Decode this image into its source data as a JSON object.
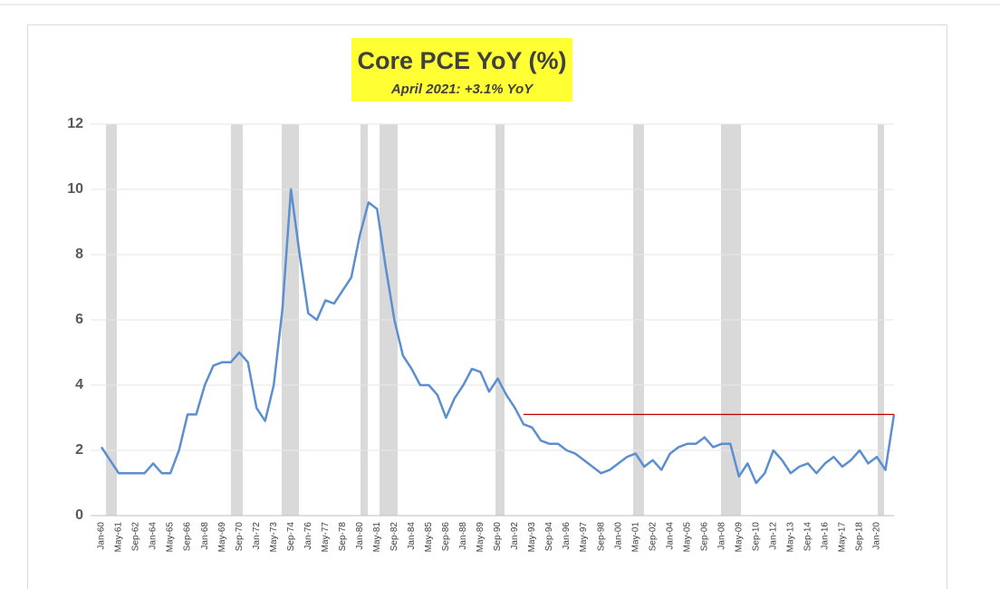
{
  "chart_data": {
    "type": "line",
    "title": "Core PCE YoY (%)",
    "subtitle": "April 2021: +3.1% YoY",
    "categories": [
      "Jan-60",
      null,
      "May-61",
      null,
      "Sep-62",
      null,
      "Jan-64",
      null,
      "May-65",
      null,
      "Sep-66",
      null,
      "Jan-68",
      null,
      "May-69",
      null,
      "Sep-70",
      null,
      "Jan-72",
      null,
      "May-73",
      null,
      "Sep-74",
      null,
      "Jan-76",
      null,
      "May-77",
      null,
      "Sep-78",
      null,
      "Jan-80",
      null,
      "May-81",
      null,
      "Sep-82",
      null,
      "Jan-84",
      null,
      "May-85",
      null,
      "Sep-86",
      null,
      "Jan-88",
      null,
      "May-89",
      null,
      "Sep-90",
      null,
      "Jan-92",
      null,
      "May-93",
      null,
      "Sep-94",
      null,
      "Jan-96",
      null,
      "May-97",
      null,
      "Sep-98",
      null,
      "Jan-00",
      null,
      "May-01",
      null,
      "Sep-02",
      null,
      "Jan-04",
      null,
      "May-05",
      null,
      "Sep-06",
      null,
      "Jan-08",
      null,
      "May-09",
      null,
      "Sep-10",
      null,
      "Jan-12",
      null,
      "May-13",
      null,
      "Sep-14",
      null,
      "Jan-16",
      null,
      "May-17",
      null,
      "Sep-18",
      null,
      "Jan-20",
      null,
      null
    ],
    "series": [
      {
        "color": "#5b8fd0",
        "values": [
          2.1,
          1.7,
          1.3,
          1.3,
          1.3,
          1.3,
          1.6,
          1.3,
          1.3,
          2.0,
          3.1,
          3.1,
          4.0,
          4.6,
          4.7,
          4.7,
          5.0,
          4.7,
          3.3,
          2.9,
          4.0,
          6.3,
          10.0,
          8.0,
          6.2,
          6.0,
          6.6,
          6.5,
          6.9,
          7.3,
          8.6,
          9.6,
          9.4,
          7.6,
          6.0,
          4.9,
          4.5,
          4.0,
          4.0,
          3.7,
          3.0,
          3.6,
          4.0,
          4.5,
          4.4,
          3.8,
          4.2,
          3.7,
          3.3,
          2.8,
          2.7,
          2.3,
          2.2,
          2.2,
          2.0,
          1.9,
          1.7,
          1.5,
          1.3,
          1.4,
          1.6,
          1.8,
          1.9,
          1.5,
          1.7,
          1.4,
          1.9,
          2.1,
          2.2,
          2.2,
          2.4,
          2.1,
          2.2,
          2.2,
          1.2,
          1.6,
          1.0,
          1.3,
          2.0,
          1.7,
          1.3,
          1.5,
          1.6,
          1.3,
          1.6,
          1.8,
          1.5,
          1.7,
          2.0,
          1.6,
          1.8,
          1.4,
          3.1
        ]
      },
      {
        "color": "#c00000",
        "values": [
          null,
          null,
          null,
          null,
          null,
          null,
          null,
          null,
          null,
          null,
          null,
          null,
          null,
          null,
          null,
          null,
          null,
          null,
          null,
          null,
          null,
          null,
          null,
          null,
          null,
          null,
          null,
          null,
          null,
          null,
          null,
          null,
          null,
          null,
          null,
          null,
          null,
          null,
          null,
          null,
          null,
          null,
          null,
          null,
          null,
          null,
          null,
          null,
          null,
          3.1,
          3.1,
          3.1,
          3.1,
          3.1,
          3.1,
          3.1,
          3.1,
          3.1,
          3.1,
          3.1,
          3.1,
          3.1,
          3.1,
          3.1,
          3.1,
          3.1,
          3.1,
          3.1,
          3.1,
          3.1,
          3.1,
          3.1,
          3.1,
          3.1,
          3.1,
          3.1,
          3.1,
          3.1,
          3.1,
          3.1,
          3.1,
          3.1,
          3.1,
          3.1,
          3.1,
          3.1,
          3.1,
          3.1,
          3.1,
          3.1,
          3.1,
          3.1,
          3.1
        ]
      }
    ],
    "ylim": [
      0,
      12
    ],
    "yticks": [
      0,
      2,
      4,
      6,
      8,
      10,
      12
    ],
    "grid": true
  }
}
